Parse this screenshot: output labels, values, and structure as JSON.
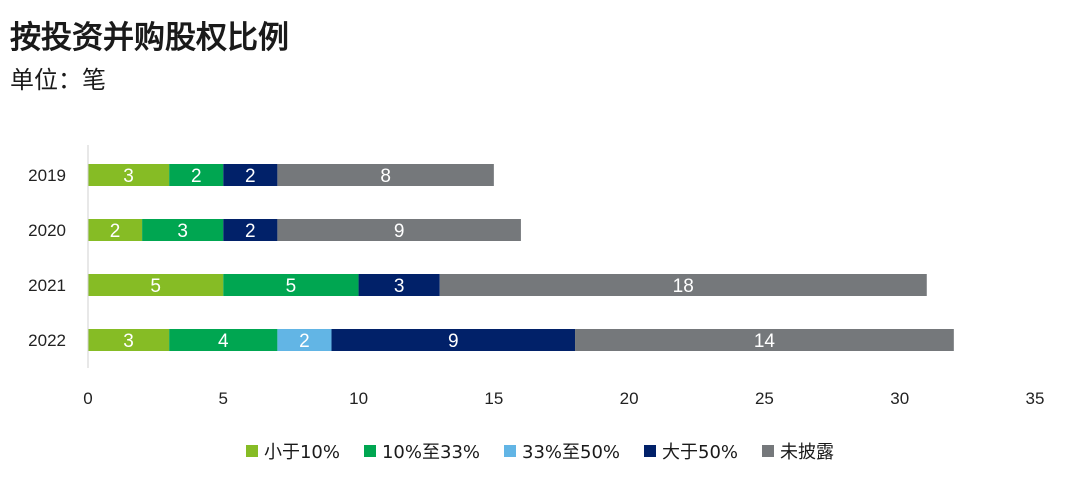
{
  "chart_data": {
    "type": "bar",
    "orientation": "horizontal",
    "stacked": true,
    "title": "按投资并购股权比例",
    "subtitle": "单位：笔",
    "categories": [
      "2019",
      "2020",
      "2021",
      "2022"
    ],
    "series": [
      {
        "name": "小于10%",
        "color": "#86bc25",
        "values": [
          3,
          2,
          5,
          3
        ]
      },
      {
        "name": "10%至33%",
        "color": "#00a651",
        "values": [
          2,
          3,
          5,
          4
        ]
      },
      {
        "name": "33%至50%",
        "color": "#62b5e5",
        "values": [
          0,
          0,
          0,
          2
        ]
      },
      {
        "name": "大于50%",
        "color": "#012169",
        "values": [
          2,
          2,
          3,
          9
        ]
      },
      {
        "name": "未披露",
        "color": "#75787b",
        "values": [
          8,
          9,
          18,
          14
        ]
      }
    ],
    "xlim": [
      0,
      35
    ],
    "xticks": [
      "0",
      "5",
      "10",
      "15",
      "20",
      "25",
      "30",
      "35"
    ],
    "grid": false,
    "legend_position": "bottom"
  }
}
